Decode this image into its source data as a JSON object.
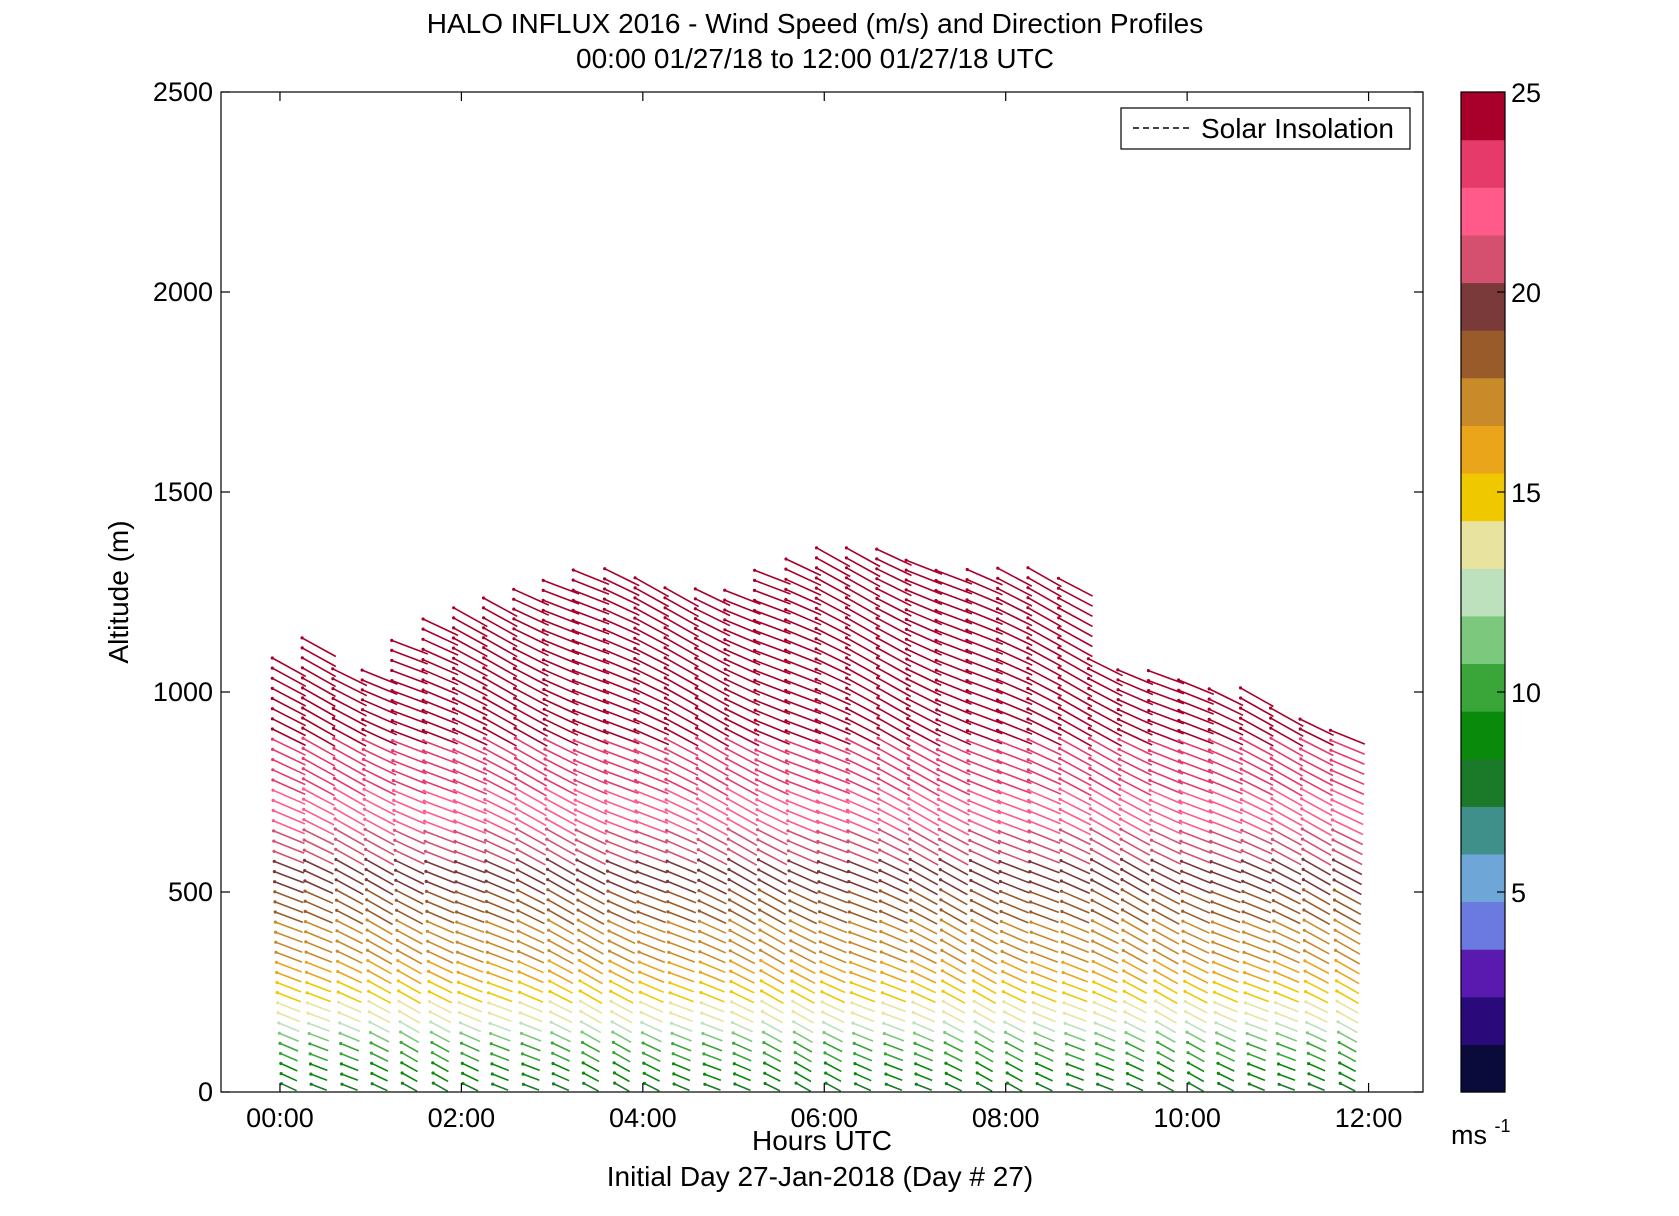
{
  "chart_data": {
    "type": "wind-profile",
    "title": "HALO INFLUX 2016 - Wind Speed (m/s) and Direction Profiles",
    "subtitle": "00:00 01/27/18 to 12:00 01/27/18  UTC",
    "xlabel": "Hours UTC",
    "ylabel": "Altitude (m)",
    "footer": "Initial Day 27-Jan-2018 (Day # 27)",
    "x_range_hours": [
      -0.65,
      12.6
    ],
    "y_range_m": [
      0,
      2500
    ],
    "x_ticks": [
      {
        "hour": 0,
        "label": "00:00"
      },
      {
        "hour": 2,
        "label": "02:00"
      },
      {
        "hour": 4,
        "label": "04:00"
      },
      {
        "hour": 6,
        "label": "06:00"
      },
      {
        "hour": 8,
        "label": "08:00"
      },
      {
        "hour": 10,
        "label": "10:00"
      },
      {
        "hour": 12,
        "label": "12:00"
      }
    ],
    "y_ticks": [
      {
        "value": 0,
        "label": "0"
      },
      {
        "value": 500,
        "label": "500"
      },
      {
        "value": 1000,
        "label": "1000"
      },
      {
        "value": 1500,
        "label": "1500"
      },
      {
        "value": 2000,
        "label": "2000"
      },
      {
        "value": 2500,
        "label": "2500"
      }
    ],
    "legend": {
      "label": "Solar Insolation",
      "placement": "top-right",
      "style": "dashed"
    },
    "colorbar": {
      "range": [
        0,
        25
      ],
      "unit_label": "ms",
      "unit_exponent": "-1",
      "ticks": [
        {
          "value": 5,
          "label": "5"
        },
        {
          "value": 10,
          "label": "10"
        },
        {
          "value": 15,
          "label": "15"
        },
        {
          "value": 20,
          "label": "20"
        },
        {
          "value": 25,
          "label": "25"
        }
      ],
      "colors": [
        "#0b0b3b",
        "#2a0a7a",
        "#5a1ab0",
        "#6a7ae0",
        "#6fa6d8",
        "#3f8f8a",
        "#1a7a2a",
        "#0a8a0a",
        "#3aa63a",
        "#7cc87c",
        "#bde0bd",
        "#e8e4a0",
        "#f0c800",
        "#eaa51a",
        "#c98b2a",
        "#9a5b2a",
        "#7a3a3a",
        "#d4506e",
        "#ff5a8a",
        "#e63a6a",
        "#a8002a"
      ]
    },
    "profile_times_hours": [
      0.1,
      0.43,
      0.77,
      1.1,
      1.43,
      1.77,
      2.1,
      2.43,
      2.77,
      3.1,
      3.43,
      3.77,
      4.1,
      4.43,
      4.77,
      5.1,
      5.43,
      5.77,
      6.1,
      6.43,
      6.77,
      7.1,
      7.43,
      7.77,
      8.1,
      8.43,
      8.77,
      9.1,
      9.43,
      9.77,
      10.1,
      10.43,
      10.77,
      11.1,
      11.43,
      11.77
    ],
    "profile_tops_m": [
      1080,
      1120,
      1060,
      1040,
      1120,
      1180,
      1200,
      1220,
      1240,
      1280,
      1300,
      1300,
      1280,
      1260,
      1240,
      1260,
      1300,
      1320,
      1340,
      1340,
      1340,
      1320,
      1300,
      1300,
      1300,
      1300,
      1280,
      1070,
      1060,
      1050,
      1030,
      1010,
      990,
      960,
      930,
      910
    ],
    "direction_deg": 245,
    "speed_profile": [
      {
        "alt_m": 0,
        "speed_ms": 8
      },
      {
        "alt_m": 100,
        "speed_ms": 10
      },
      {
        "alt_m": 200,
        "speed_ms": 14
      },
      {
        "alt_m": 350,
        "speed_ms": 17
      },
      {
        "alt_m": 500,
        "speed_ms": 19
      },
      {
        "alt_m": 700,
        "speed_ms": 22
      },
      {
        "alt_m": 900,
        "speed_ms": 24
      },
      {
        "alt_m": 1100,
        "speed_ms": 25
      }
    ]
  }
}
